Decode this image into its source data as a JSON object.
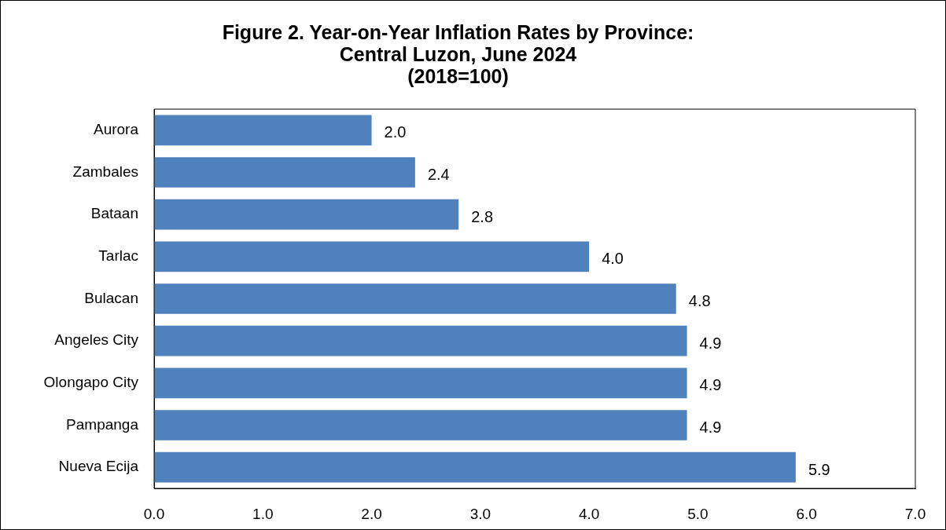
{
  "chart_data": {
    "type": "bar",
    "orientation": "horizontal",
    "title": "Figure 2. Year-on-Year Inflation Rates by Province:\nCentral Luzon, June 2024\n(2018=100)",
    "categories": [
      "Aurora",
      "Zambales",
      "Bataan",
      "Tarlac",
      "Bulacan",
      "Angeles City",
      "Olongapo City",
      "Pampanga",
      "Nueva Ecija"
    ],
    "values": [
      2.0,
      2.4,
      2.8,
      4.0,
      4.8,
      4.9,
      4.9,
      4.9,
      5.9
    ],
    "value_labels": [
      "2.0",
      "2.4",
      "2.8",
      "4.0",
      "4.8",
      "4.9",
      "4.9",
      "4.9",
      "5.9"
    ],
    "color": "#4f81bd",
    "xlim": [
      0,
      7
    ],
    "xticks": [
      {
        "value": 0,
        "label": "0.0"
      },
      {
        "value": 1,
        "label": "1.0"
      },
      {
        "value": 2,
        "label": "2.0"
      },
      {
        "value": 3,
        "label": "3.0"
      },
      {
        "value": 4,
        "label": "4.0"
      },
      {
        "value": 5,
        "label": "5.0"
      },
      {
        "value": 6,
        "label": "6.0"
      },
      {
        "value": 7,
        "label": "7.0"
      }
    ],
    "grid": false,
    "legend": false
  }
}
